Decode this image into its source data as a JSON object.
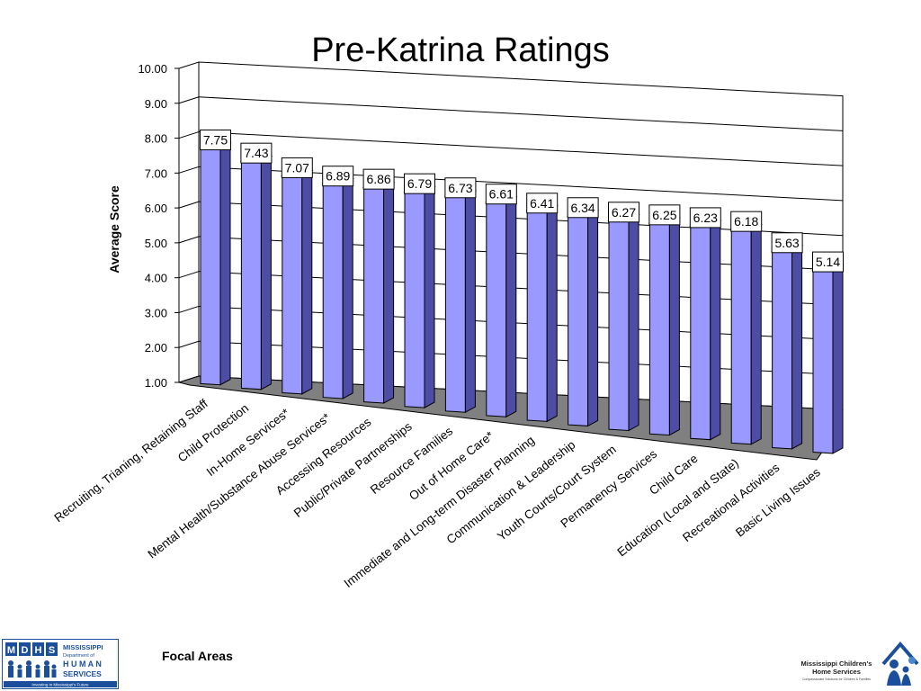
{
  "chart_data": {
    "type": "bar",
    "title": "Pre-Katrina Ratings",
    "xlabel": "Focal Areas",
    "ylabel": "Average Score",
    "ylim": [
      1.0,
      10.0
    ],
    "yticks": [
      "1.00",
      "2.00",
      "3.00",
      "4.00",
      "5.00",
      "6.00",
      "7.00",
      "8.00",
      "9.00",
      "10.00"
    ],
    "grid": true,
    "legend": "none",
    "three_d": true,
    "categories": [
      "Recruiting, Trianing, Retaining Staff",
      "Child Protection",
      "In-Home Services*",
      "Mental Health/Substance Abuse Services*",
      "Accessing Resources",
      "Public/Private Partnerships",
      "Resource Families",
      "Out of Home Care*",
      "Immediate and Long-term Disaster Planning",
      "Communication & Leadership",
      "Youth Courts/Court System",
      "Permanency Services",
      "Child Care",
      "Education (Local and State)",
      "Recreational Activities",
      "Basic Living Issues"
    ],
    "values": [
      7.75,
      7.43,
      7.07,
      6.89,
      6.86,
      6.79,
      6.73,
      6.61,
      6.41,
      6.34,
      6.27,
      6.25,
      6.23,
      6.18,
      5.63,
      5.14
    ],
    "data_labels": [
      "7.75",
      "7.43",
      "7.07",
      "6.89",
      "6.86",
      "6.79",
      "6.73",
      "6.61",
      "6.41",
      "6.34",
      "6.27",
      "6.25",
      "6.23",
      "6.18",
      "5.63",
      "5.14"
    ],
    "colors": {
      "bar_front": "#9999ff",
      "bar_side": "#4d4da6",
      "bar_top": "#ccccff",
      "floor": "#808080",
      "grid": "#000000"
    }
  },
  "logos": {
    "left": {
      "letters": [
        "M",
        "D",
        "H",
        "S"
      ],
      "lines": [
        "MISSISSIPPI",
        "Department of",
        "H U M A N",
        "SERVICES"
      ],
      "tagline": "Investing in Mississippi's Future"
    },
    "right": {
      "lines": [
        "Mississippi Children's",
        "Home Services"
      ],
      "tagline": "Compassionate Solutions for Children & Families"
    }
  }
}
